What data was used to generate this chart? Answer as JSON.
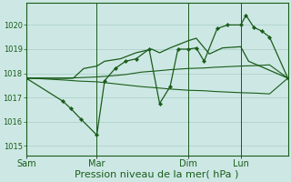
{
  "bg_color": "#cde8e4",
  "grid_color": "#aaccc8",
  "line_color": "#1a5c1a",
  "xlabel": "Pression niveau de la mer( hPa )",
  "xlabel_fontsize": 8,
  "ylim": [
    1014.6,
    1020.9
  ],
  "yticks": [
    1015,
    1016,
    1017,
    1018,
    1019,
    1020
  ],
  "ytick_fontsize": 6,
  "xtick_labels": [
    "Sam",
    "Mar",
    "Dim",
    "Lun"
  ],
  "xtick_positions": [
    0,
    0.27,
    0.62,
    0.82
  ],
  "vline_positions": [
    0.0,
    0.27,
    0.62,
    0.82
  ],
  "line1_x": [
    0.0,
    0.05,
    0.1,
    0.15,
    0.2,
    0.27,
    0.33,
    0.38,
    0.44,
    0.5,
    0.55,
    0.62,
    0.68,
    0.72,
    0.78,
    0.82,
    0.88,
    0.93,
    1.0
  ],
  "line1_y": [
    1017.8,
    1017.8,
    1017.8,
    1017.8,
    1017.82,
    1017.85,
    1017.9,
    1017.95,
    1018.05,
    1018.1,
    1018.15,
    1018.2,
    1018.22,
    1018.25,
    1018.28,
    1018.3,
    1018.32,
    1018.35,
    1017.8
  ],
  "line2_x": [
    0.0,
    0.05,
    0.1,
    0.15,
    0.2,
    0.27,
    0.33,
    0.38,
    0.44,
    0.5,
    0.55,
    0.62,
    0.68,
    0.72,
    0.78,
    0.82,
    0.88,
    0.93,
    1.0
  ],
  "line2_y": [
    1017.8,
    1017.78,
    1017.75,
    1017.72,
    1017.68,
    1017.65,
    1017.58,
    1017.52,
    1017.45,
    1017.4,
    1017.35,
    1017.3,
    1017.28,
    1017.25,
    1017.22,
    1017.2,
    1017.18,
    1017.15,
    1017.8
  ],
  "line3_x": [
    0.0,
    0.18,
    0.22,
    0.27,
    0.3,
    0.36,
    0.42,
    0.48,
    0.51,
    0.55,
    0.62,
    0.65,
    0.7,
    0.75,
    0.82,
    0.85,
    1.0
  ],
  "line3_y": [
    1017.8,
    1017.8,
    1018.2,
    1018.3,
    1018.5,
    1018.6,
    1018.85,
    1019.0,
    1018.85,
    1019.05,
    1019.35,
    1019.45,
    1018.8,
    1019.05,
    1019.1,
    1018.5,
    1017.8
  ],
  "line4_x": [
    0.0,
    0.14,
    0.17,
    0.21,
    0.27,
    0.3,
    0.34,
    0.38,
    0.42,
    0.47,
    0.51,
    0.55,
    0.58,
    0.62,
    0.65,
    0.68,
    0.73,
    0.77,
    0.82,
    0.84,
    0.87,
    0.9,
    0.93,
    1.0
  ],
  "line4_y": [
    1017.8,
    1016.85,
    1016.55,
    1016.1,
    1015.45,
    1017.7,
    1018.2,
    1018.5,
    1018.6,
    1019.0,
    1016.75,
    1017.45,
    1019.0,
    1019.0,
    1019.05,
    1018.5,
    1019.85,
    1020.0,
    1020.0,
    1020.4,
    1019.9,
    1019.75,
    1019.5,
    1017.8
  ]
}
